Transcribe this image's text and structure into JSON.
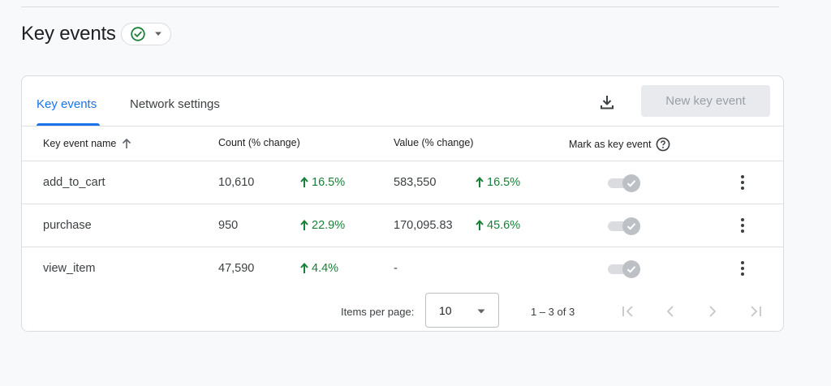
{
  "page": {
    "title": "Key events",
    "status_icon": "check-circle-icon",
    "dropdown_icon": "caret-down-icon"
  },
  "tabs": [
    {
      "label": "Key events",
      "active": true
    },
    {
      "label": "Network settings",
      "active": false
    }
  ],
  "toolbar": {
    "download_icon": "download-icon",
    "new_button_label": "New key event"
  },
  "table": {
    "columns": {
      "name": "Key event name",
      "count": "Count (% change)",
      "value": "Value (% change)",
      "mark": "Mark as key event"
    },
    "rows": [
      {
        "name": "add_to_cart",
        "count": "10,610",
        "count_change": "16.5%",
        "value": "583,550",
        "value_change": "16.5%",
        "marked": true
      },
      {
        "name": "purchase",
        "count": "950",
        "count_change": "22.9%",
        "value": "170,095.83",
        "value_change": "45.6%",
        "marked": true
      },
      {
        "name": "view_item",
        "count": "47,590",
        "count_change": "4.4%",
        "value": "-",
        "value_change": "",
        "marked": true
      }
    ]
  },
  "pagination": {
    "items_per_page_label": "Items per page:",
    "items_per_page_value": "10",
    "range_label": "1 – 3 of 3"
  },
  "colors": {
    "accent": "#1a73e8",
    "positive": "#188038",
    "status_check": "#188038",
    "disabled_button_bg": "#e8eaed"
  }
}
